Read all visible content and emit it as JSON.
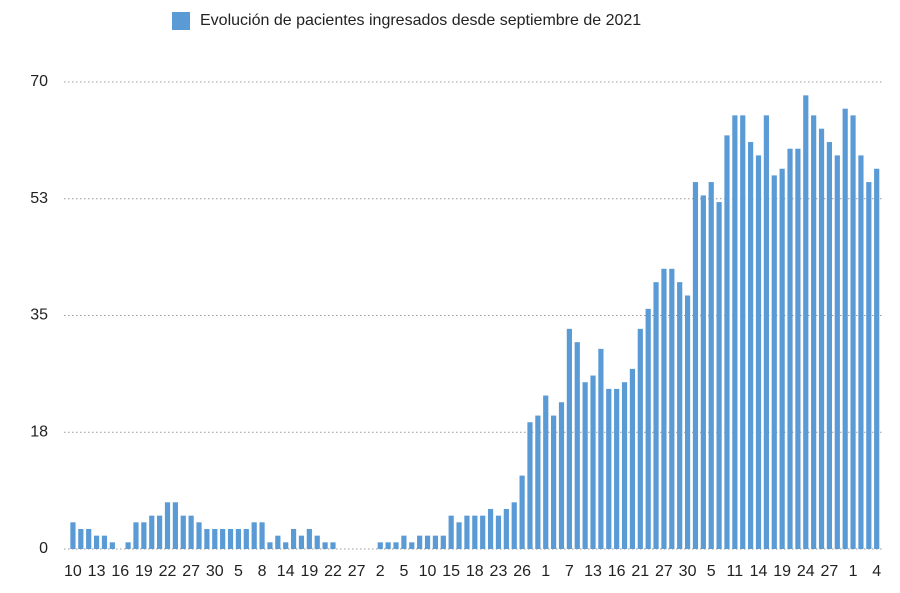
{
  "chart_data": {
    "type": "bar",
    "legend": "Evolución de pacientes ingresados desde septiembre de 2021",
    "color": "#5b9bd5",
    "categories": [
      "10",
      null,
      null,
      "13",
      null,
      null,
      "16",
      null,
      null,
      "19",
      null,
      null,
      "22",
      null,
      null,
      "27",
      null,
      null,
      "30",
      null,
      null,
      "5",
      null,
      null,
      "8",
      null,
      null,
      "14",
      null,
      null,
      "19",
      null,
      null,
      "22",
      null,
      null,
      "27",
      null,
      null,
      "2",
      null,
      null,
      "5",
      null,
      null,
      "10",
      null,
      null,
      "15",
      null,
      null,
      "18",
      null,
      null,
      "23",
      null,
      null,
      "26",
      null,
      null,
      "1",
      null,
      null,
      "7",
      null,
      null,
      "13",
      null,
      null,
      "16",
      null,
      null,
      "21",
      null,
      null,
      "27",
      null,
      null,
      "30",
      null,
      null,
      "5",
      null,
      null,
      "11",
      null,
      null,
      "14",
      null,
      null,
      "19",
      null,
      null,
      "24",
      null,
      null,
      "27",
      null,
      null,
      "1",
      null,
      null,
      "4"
    ],
    "values": [
      4,
      3,
      3,
      2,
      2,
      1,
      0,
      1,
      4,
      4,
      5,
      5,
      7,
      7,
      5,
      5,
      4,
      3,
      3,
      3,
      3,
      3,
      3,
      4,
      4,
      1,
      2,
      1,
      3,
      2,
      3,
      2,
      1,
      1,
      0,
      0,
      0,
      0,
      0,
      1,
      1,
      1,
      2,
      1,
      2,
      2,
      2,
      2,
      5,
      4,
      5,
      5,
      5,
      6,
      5,
      6,
      7,
      11,
      19,
      20,
      23,
      20,
      22,
      33,
      31,
      25,
      26,
      30,
      24,
      24,
      25,
      27,
      33,
      36,
      40,
      42,
      42,
      40,
      38,
      55,
      53,
      55,
      52,
      62,
      65,
      65,
      61,
      59,
      65,
      56,
      57,
      60,
      60,
      68,
      65,
      63,
      61,
      59,
      66,
      65,
      59,
      55,
      57
    ],
    "ylim": [
      0,
      70
    ],
    "yticks": [
      0,
      {
        "value": 17.5,
        "label": "18"
      },
      35,
      {
        "value": 52.5,
        "label": "53"
      },
      70
    ],
    "grid": true
  }
}
